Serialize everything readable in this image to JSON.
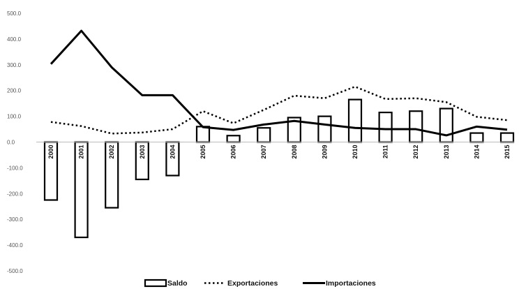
{
  "chart_data": {
    "type": "bar",
    "title": "",
    "xlabel": "",
    "ylabel": "",
    "ylim": [
      -500,
      500
    ],
    "yticks": [
      "500.0",
      "400.0",
      "300.0",
      "200.0",
      "100.0",
      "0.0",
      "-100.0",
      "-200.0",
      "-300.0",
      "-400.0",
      "-500.0"
    ],
    "categories": [
      "2000",
      "2001",
      "2002",
      "2003",
      "2004",
      "2005",
      "2006",
      "2007",
      "2008",
      "2009",
      "2010",
      "2011",
      "2012",
      "2013",
      "2014",
      "2015"
    ],
    "series": [
      {
        "name": "Saldo",
        "type": "bar",
        "values": [
          -225,
          -370,
          -255,
          -145,
          -130,
          60,
          25,
          55,
          95,
          100,
          165,
          115,
          120,
          130,
          35,
          35
        ]
      },
      {
        "name": "Exportaciones",
        "type": "line",
        "style": "dotted",
        "values": [
          78,
          62,
          33,
          37,
          50,
          120,
          73,
          125,
          180,
          170,
          215,
          167,
          170,
          155,
          98,
          85
        ]
      },
      {
        "name": "Importaciones",
        "type": "line",
        "style": "solid",
        "values": [
          303,
          432,
          290,
          182,
          182,
          58,
          47,
          68,
          82,
          68,
          55,
          50,
          50,
          26,
          60,
          48
        ]
      }
    ],
    "grid": false,
    "legend_position": "bottom"
  }
}
